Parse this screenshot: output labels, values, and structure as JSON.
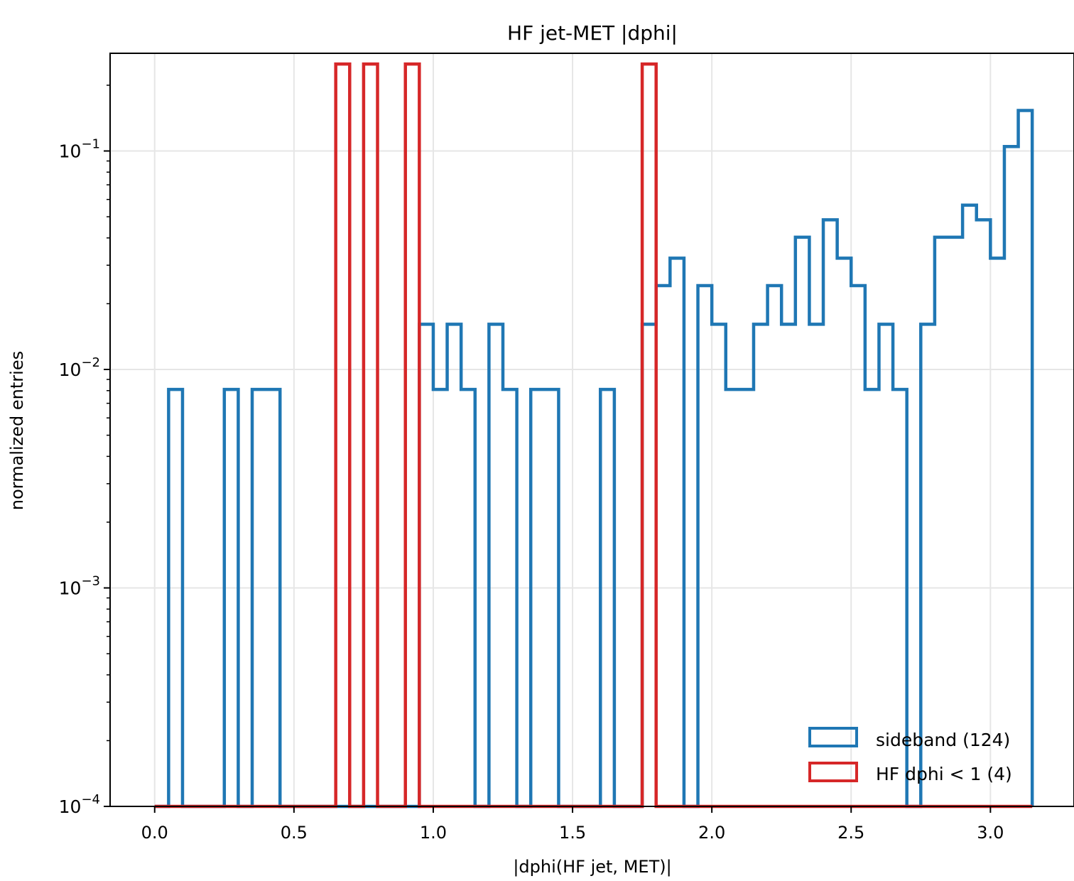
{
  "chart_data": {
    "type": "histogram",
    "title": "HF jet-MET |dphi|",
    "xlabel": "|dphi(HF jet, MET)|",
    "ylabel": "normalized entries",
    "yscale": "log",
    "xlim": [
      -0.16,
      3.3
    ],
    "ylim": [
      0.0001,
      0.28
    ],
    "grid": true,
    "legend_position": "lower-right",
    "bin_edges": [
      0.0,
      0.05,
      0.1,
      0.15,
      0.2,
      0.25,
      0.3,
      0.35,
      0.4,
      0.45,
      0.5,
      0.55,
      0.6,
      0.65,
      0.7,
      0.75,
      0.8,
      0.85,
      0.9,
      0.95,
      1.0,
      1.05,
      1.1,
      1.15,
      1.2,
      1.25,
      1.3,
      1.35,
      1.4,
      1.45,
      1.5,
      1.55,
      1.6,
      1.65,
      1.7,
      1.75,
      1.8,
      1.85,
      1.9,
      1.95,
      2.0,
      2.05,
      2.1,
      2.15,
      2.2,
      2.25,
      2.3,
      2.35,
      2.4,
      2.45,
      2.5,
      2.55,
      2.6,
      2.65,
      2.7,
      2.75,
      2.8,
      2.85,
      2.9,
      2.95,
      3.0,
      3.05,
      3.1,
      3.15
    ],
    "x_ticks": [
      "0.0",
      "0.5",
      "1.0",
      "1.5",
      "2.0",
      "2.5",
      "3.0"
    ],
    "x_tick_values": [
      0.0,
      0.5,
      1.0,
      1.5,
      2.0,
      2.5,
      3.0
    ],
    "y_tick_values": [
      0.0001,
      0.001,
      0.01,
      0.1
    ],
    "y_tick_base": "10",
    "y_tick_exponents": [
      "−4",
      "−3",
      "−2",
      "−1"
    ],
    "series": [
      {
        "name": "sideband (124)",
        "color": "#1f77b4",
        "values": [
          0,
          0.0081,
          0,
          0,
          0,
          0.0081,
          0,
          0.0081,
          0.0081,
          0,
          0,
          0,
          0,
          0,
          0,
          0,
          0,
          0,
          0,
          0.0161,
          0.0081,
          0.0161,
          0.0081,
          0,
          0.0161,
          0.0081,
          0,
          0.0081,
          0.0081,
          0,
          0,
          0,
          0.0081,
          0,
          0,
          0.0161,
          0.0242,
          0.0323,
          0,
          0.0242,
          0.0161,
          0.0081,
          0.0081,
          0.0161,
          0.0242,
          0.0161,
          0.0403,
          0.0161,
          0.0484,
          0.0323,
          0.0242,
          0.0081,
          0.0161,
          0.0081,
          0,
          0.0161,
          0.0403,
          0.0403,
          0.0565,
          0.0484,
          0.0323,
          0.1048,
          0.1532
        ]
      },
      {
        "name": "HF dphi < 1 (4)",
        "color": "#d62728",
        "values": [
          0,
          0,
          0,
          0,
          0,
          0,
          0,
          0,
          0,
          0,
          0,
          0,
          0,
          0.25,
          0,
          0.25,
          0,
          0,
          0.25,
          0,
          0,
          0,
          0,
          0,
          0,
          0,
          0,
          0,
          0,
          0,
          0,
          0,
          0,
          0,
          0,
          0.25,
          0,
          0,
          0,
          0,
          0,
          0,
          0,
          0,
          0,
          0,
          0,
          0,
          0,
          0,
          0,
          0,
          0,
          0,
          0,
          0,
          0,
          0,
          0,
          0,
          0,
          0,
          0
        ]
      }
    ]
  }
}
